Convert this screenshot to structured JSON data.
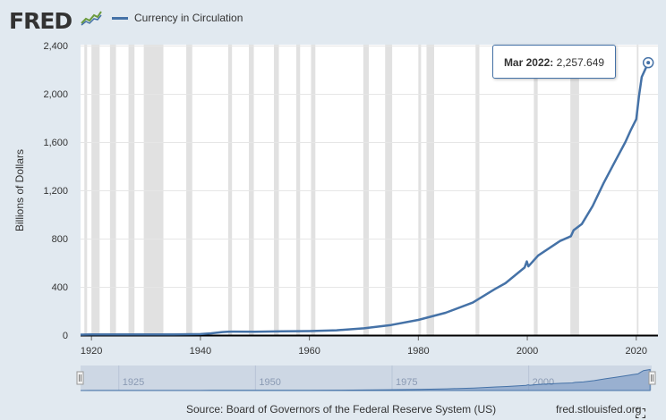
{
  "header": {
    "logo_text": "FRED",
    "logo_icon": "fred-graph-icon",
    "series_label": "Currency in Circulation"
  },
  "tooltip": {
    "date": "Mar 2022:",
    "value": "2,257.649"
  },
  "footer": {
    "source": "Source: Board of Governors of the Federal Reserve System (US)",
    "site": "fred.stlouisfed.org",
    "fullscreen_icon": "fullscreen-icon"
  },
  "colors": {
    "series": "#4572a7",
    "recession": "#e1e1e1",
    "background": "#e1e9f0",
    "plot": "#ffffff",
    "navigator": "#cdd7e4"
  },
  "chart_data": {
    "type": "line",
    "ylabel": "Billions of Dollars",
    "xlabel": "",
    "xlim": [
      1918,
      2022.5
    ],
    "ylim": [
      0,
      2400
    ],
    "yticks": [
      0,
      400,
      800,
      1200,
      1600,
      2000,
      2400
    ],
    "ytick_labels": [
      "0",
      "400",
      "800",
      "1,200",
      "1,600",
      "2,000",
      "2,400"
    ],
    "xticks": [
      1920,
      1940,
      1960,
      1980,
      2000,
      2020
    ],
    "xtick_labels": [
      "1920",
      "1940",
      "1960",
      "1980",
      "2000",
      "2020"
    ],
    "grid": "horizontal",
    "series": [
      {
        "name": "Currency in Circulation",
        "x": [
          1918,
          1920,
          1925,
          1930,
          1935,
          1940,
          1942,
          1944,
          1945,
          1946,
          1950,
          1955,
          1960,
          1965,
          1970,
          1975,
          1980,
          1985,
          1990,
          1994,
          1996,
          1999.5,
          1999.9,
          2000.2,
          2002,
          2004,
          2006,
          2008,
          2008.5,
          2010,
          2012,
          2014,
          2016,
          2018,
          2019,
          2020,
          2020.5,
          2021,
          2022.2
        ],
        "y": [
          4,
          5,
          5,
          5,
          6,
          8,
          15,
          25,
          28,
          29,
          28,
          31,
          33,
          40,
          56,
          84,
          126,
          185,
          270,
          380,
          430,
          560,
          610,
          570,
          660,
          720,
          780,
          820,
          870,
          920,
          1070,
          1260,
          1430,
          1600,
          1700,
          1790,
          1980,
          2140,
          2258
        ]
      }
    ],
    "recessions": [
      [
        1918.7,
        1919.2
      ],
      [
        1920.0,
        1921.5
      ],
      [
        1923.4,
        1924.5
      ],
      [
        1926.8,
        1927.9
      ],
      [
        1929.6,
        1933.2
      ],
      [
        1937.4,
        1938.5
      ],
      [
        1945.1,
        1945.8
      ],
      [
        1948.9,
        1949.8
      ],
      [
        1953.5,
        1954.4
      ],
      [
        1957.6,
        1958.3
      ],
      [
        1960.3,
        1961.1
      ],
      [
        1969.9,
        1970.9
      ],
      [
        1973.9,
        1975.2
      ],
      [
        1980.0,
        1980.5
      ],
      [
        1981.5,
        1982.9
      ],
      [
        1990.5,
        1991.2
      ],
      [
        2001.2,
        2001.9
      ],
      [
        2007.9,
        2009.5
      ],
      [
        2020.1,
        2020.4
      ]
    ],
    "navigator": {
      "xticks": [
        1925,
        1950,
        1975,
        2000
      ],
      "xtick_labels": [
        "1925",
        "1950",
        "1975",
        "2000"
      ]
    }
  }
}
